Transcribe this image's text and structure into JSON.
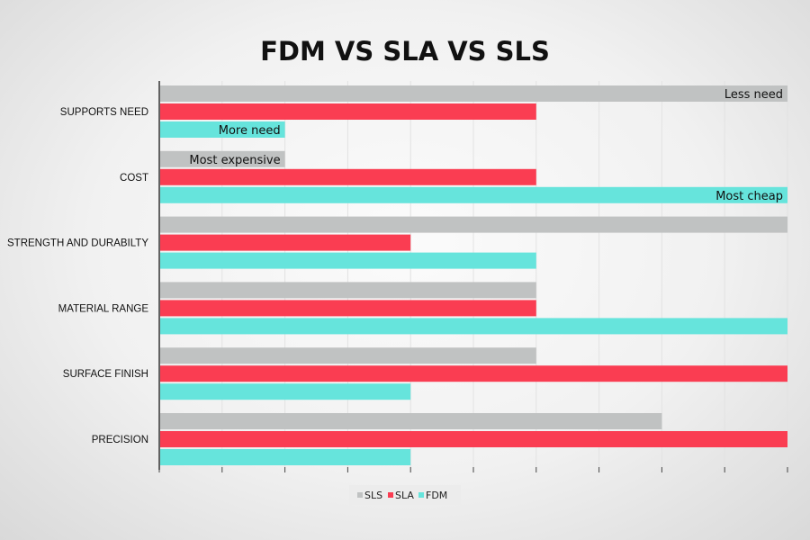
{
  "chart_data": {
    "type": "bar",
    "orientation": "horizontal",
    "title": "FDM VS SLA VS SLS",
    "categories": [
      "SUPPORTS NEED",
      "COST",
      "STRENGTH AND DURABILTY",
      "MATERIAL RANGE",
      "SURFACE FINISH",
      "PRECISION"
    ],
    "series": [
      {
        "name": "SLS",
        "color": "#c0c2c2",
        "values": [
          10,
          2,
          10,
          6,
          6,
          8
        ]
      },
      {
        "name": "SLA",
        "color": "#fa3d52",
        "values": [
          6,
          6,
          4,
          6,
          10,
          10
        ]
      },
      {
        "name": "FDM",
        "color": "#66e4dc",
        "values": [
          2,
          10,
          6,
          10,
          4,
          4
        ]
      }
    ],
    "annotations": [
      {
        "category": "SUPPORTS NEED",
        "series": "SLS",
        "text": "Less need"
      },
      {
        "category": "SUPPORTS NEED",
        "series": "FDM",
        "text": "More need"
      },
      {
        "category": "COST",
        "series": "SLS",
        "text": "Most expensive"
      },
      {
        "category": "COST",
        "series": "FDM",
        "text": "Most cheap"
      }
    ],
    "xlim": [
      0,
      10
    ],
    "grid": true,
    "legend": "bottom-center",
    "xlabel": "",
    "ylabel": ""
  }
}
